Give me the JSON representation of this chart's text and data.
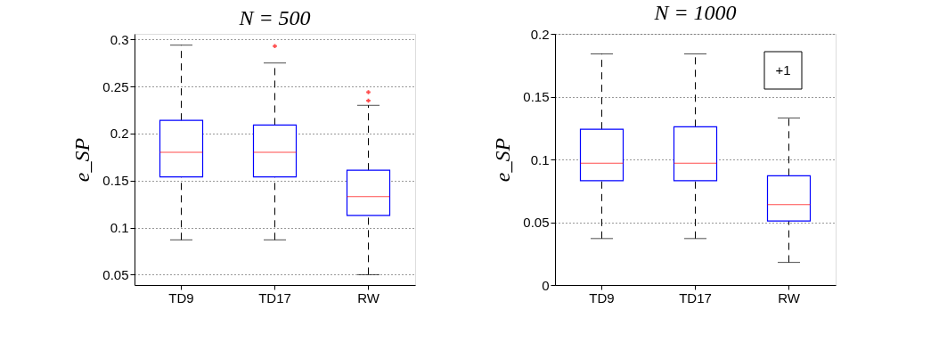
{
  "chart_data": [
    {
      "type": "box",
      "title": "N = 500",
      "ylabel": "e_SP",
      "categories": [
        "TD9",
        "TD17",
        "RW"
      ],
      "boxes": [
        {
          "low": 0.087,
          "q1": 0.154,
          "median": 0.18,
          "q3": 0.214,
          "high": 0.294
        },
        {
          "low": 0.087,
          "q1": 0.154,
          "median": 0.18,
          "q3": 0.209,
          "high": 0.275,
          "outliers": [
            0.293
          ]
        },
        {
          "low": 0.05,
          "q1": 0.113,
          "median": 0.133,
          "q3": 0.161,
          "high": 0.23,
          "outliers": [
            0.244,
            0.235
          ]
        }
      ],
      "ylim": [
        0.039,
        0.306
      ],
      "yticks": [
        0.05,
        0.1,
        0.15,
        0.2,
        0.25,
        0.3
      ],
      "grid": "y"
    },
    {
      "type": "box",
      "title": "N = 1000",
      "ylabel": "e_SP",
      "categories": [
        "TD9",
        "TD17",
        "RW"
      ],
      "boxes": [
        {
          "low": 0.037,
          "q1": 0.083,
          "median": 0.097,
          "q3": 0.124,
          "high": 0.184
        },
        {
          "low": 0.037,
          "q1": 0.083,
          "median": 0.097,
          "q3": 0.126,
          "high": 0.184
        },
        {
          "low": 0.018,
          "q1": 0.051,
          "median": 0.064,
          "q3": 0.087,
          "high": 0.133
        }
      ],
      "ylim": [
        0,
        0.2
      ],
      "yticks": [
        0,
        0.05,
        0.1,
        0.15,
        0.2
      ],
      "grid": "y",
      "annotations": [
        "+1"
      ]
    }
  ]
}
